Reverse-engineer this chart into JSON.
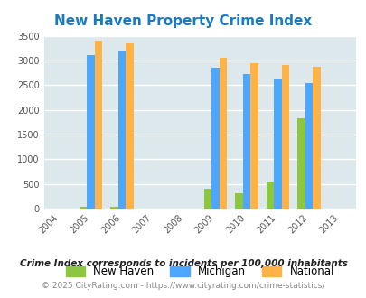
{
  "title": "New Haven Property Crime Index",
  "title_color": "#1a7abf",
  "years": [
    2004,
    2005,
    2006,
    2007,
    2008,
    2009,
    2010,
    2011,
    2012,
    2013
  ],
  "data_years": [
    2005,
    2006,
    2009,
    2010,
    2011,
    2012
  ],
  "new_haven": [
    30,
    30,
    400,
    310,
    550,
    1820
  ],
  "michigan": [
    3100,
    3200,
    2850,
    2720,
    2620,
    2540
  ],
  "national": [
    3400,
    3350,
    3050,
    2950,
    2900,
    2870
  ],
  "color_new_haven": "#8dc63f",
  "color_michigan": "#4da6ff",
  "color_national": "#ffb347",
  "ylim": [
    0,
    3500
  ],
  "yticks": [
    0,
    500,
    1000,
    1500,
    2000,
    2500,
    3000,
    3500
  ],
  "background_color": "#dde8ec",
  "grid_color": "#ffffff",
  "legend_labels": [
    "New Haven",
    "Michigan",
    "National"
  ],
  "footnote1": "Crime Index corresponds to incidents per 100,000 inhabitants",
  "footnote2": "© 2025 CityRating.com - https://www.cityrating.com/crime-statistics/",
  "bar_width": 0.25,
  "figsize": [
    4.06,
    3.3
  ],
  "dpi": 100
}
